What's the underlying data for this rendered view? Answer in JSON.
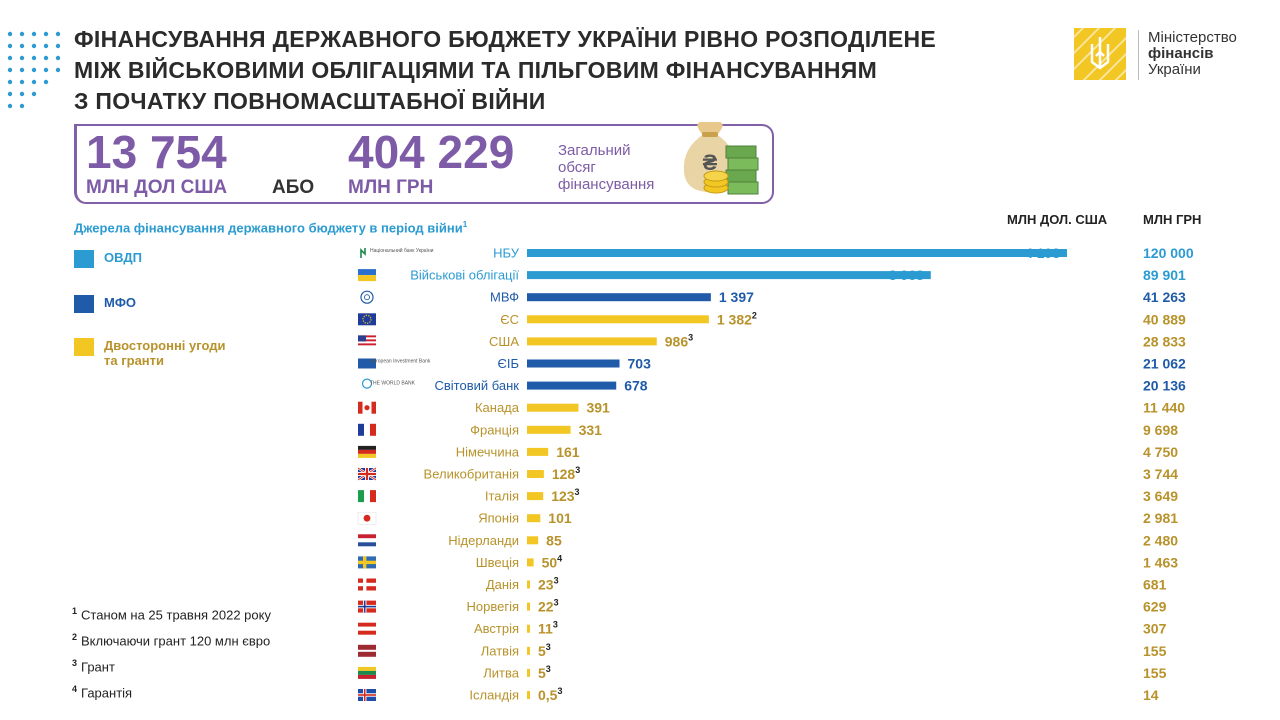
{
  "header": {
    "title_lines": [
      "ФІНАНСУВАННЯ ДЕРЖАВНОГО БЮДЖЕТУ УКРАЇНИ РІВНО РОЗПОДІЛЕНЕ",
      "МІЖ ВІЙСЬКОВИМИ ОБЛІГАЦІЯМИ ТА ПІЛЬГОВИМ ФІНАНСУВАННЯМ",
      "З ПОЧАТКУ ПОВНОМАСШТАБНОЇ ВІЙНИ"
    ],
    "ministry_lines": [
      "Міністерство",
      "фінансів",
      "України"
    ]
  },
  "totals": {
    "usd_value": "13 754",
    "usd_unit": "МЛН ДОЛ США",
    "or_word": "АБО",
    "uah_value": "404 229",
    "uah_unit": "МЛН ГРН",
    "description_lines": [
      "Загальний",
      "обсяг",
      "фінансування"
    ]
  },
  "legend": {
    "subtitle": "Джерела фінансування державного бюджету в період війни",
    "subtitle_note": "1",
    "items": [
      {
        "label_lines": [
          "ОВДП"
        ],
        "color": "#2b9bd2"
      },
      {
        "label_lines": [
          "МФО"
        ],
        "color": "#1f5ba8"
      },
      {
        "label_lines": [
          "Двосторонні угоди",
          "та гранти"
        ],
        "color": "#f2c623"
      }
    ]
  },
  "column_headers": {
    "usd": "МЛН ДОЛ. США",
    "uah": "МЛН ГРН"
  },
  "colors": {
    "ovdp": "#2b9bd2",
    "mfo": "#1f5ba8",
    "bilateral": "#f2c623",
    "bilateral_text": "#b8922a",
    "accent": "#7d5ba6"
  },
  "chart_data": {
    "type": "bar",
    "orientation": "horizontal",
    "unit": "МЛН ДОЛ. США",
    "secondary_unit": "МЛН ГРН",
    "categories": [
      "НБУ",
      "Військові облігації",
      "МВФ",
      "ЄС",
      "США",
      "ЄІБ",
      "Світовий банк",
      "Канада",
      "Франція",
      "Німеччина",
      "Великобританія",
      "Італія",
      "Японія",
      "Нідерланди",
      "Швеція",
      "Данія",
      "Норвегія",
      "Австрія",
      "Латвія",
      "Литва",
      "Ісландія"
    ],
    "values": [
      4103,
      3068,
      1397,
      1382,
      986,
      703,
      678,
      391,
      331,
      161,
      128,
      123,
      101,
      85,
      50,
      23,
      22,
      11,
      5,
      5,
      0.5
    ],
    "value_labels": [
      "4 103",
      "3 068",
      "1 397",
      "1 382",
      "986",
      "703",
      "678",
      "391",
      "331",
      "161",
      "128",
      "123",
      "101",
      "85",
      "50",
      "23",
      "22",
      "11",
      "5",
      "5",
      "0,5"
    ],
    "notes": [
      "",
      "",
      "",
      "2",
      "3",
      "",
      "",
      "",
      "",
      "",
      "3",
      "3",
      "",
      "",
      "4",
      "3",
      "3",
      "3",
      "3",
      "3",
      "3"
    ],
    "uah_values": [
      "120 000",
      "89 901",
      "41 263",
      "40 889",
      "28 833",
      "21 062",
      "20 136",
      "11 440",
      "9 698",
      "4 750",
      "3 744",
      "3 649",
      "2 981",
      "2 480",
      "1 463",
      "681",
      "629",
      "307",
      "155",
      "155",
      "14"
    ],
    "groups": [
      "ovdp",
      "ovdp",
      "mfo",
      "bilateral",
      "bilateral",
      "mfo",
      "mfo",
      "bilateral",
      "bilateral",
      "bilateral",
      "bilateral",
      "bilateral",
      "bilateral",
      "bilateral",
      "bilateral",
      "bilateral",
      "bilateral",
      "bilateral",
      "bilateral",
      "bilateral",
      "bilateral"
    ],
    "icons": [
      "nbu-logo-icon",
      "ukraine-flag-icon",
      "imf-logo-icon",
      "eu-flag-icon",
      "usa-flag-icon",
      "eib-logo-icon",
      "world-bank-logo-icon",
      "canada-flag-icon",
      "france-flag-icon",
      "germany-flag-icon",
      "uk-flag-icon",
      "italy-flag-icon",
      "japan-flag-icon",
      "netherlands-flag-icon",
      "sweden-flag-icon",
      "denmark-flag-icon",
      "norway-flag-icon",
      "austria-flag-icon",
      "latvia-flag-icon",
      "lithuania-flag-icon",
      "iceland-flag-icon"
    ],
    "icon_texts": [
      "Національний банк України",
      "",
      "",
      "",
      "",
      "European Investment Bank",
      "THE WORLD BANK",
      "",
      "",
      "",
      "",
      "",
      "",
      "",
      "",
      "",
      "",
      "",
      "",
      "",
      ""
    ]
  },
  "footnotes": [
    {
      "mark": "1",
      "text": "Станом на 25 травня 2022 року"
    },
    {
      "mark": "2",
      "text": "Включаючи грант 120 млн євро"
    },
    {
      "mark": "3",
      "text": "Грант"
    },
    {
      "mark": "4",
      "text": "Гарантія"
    }
  ]
}
